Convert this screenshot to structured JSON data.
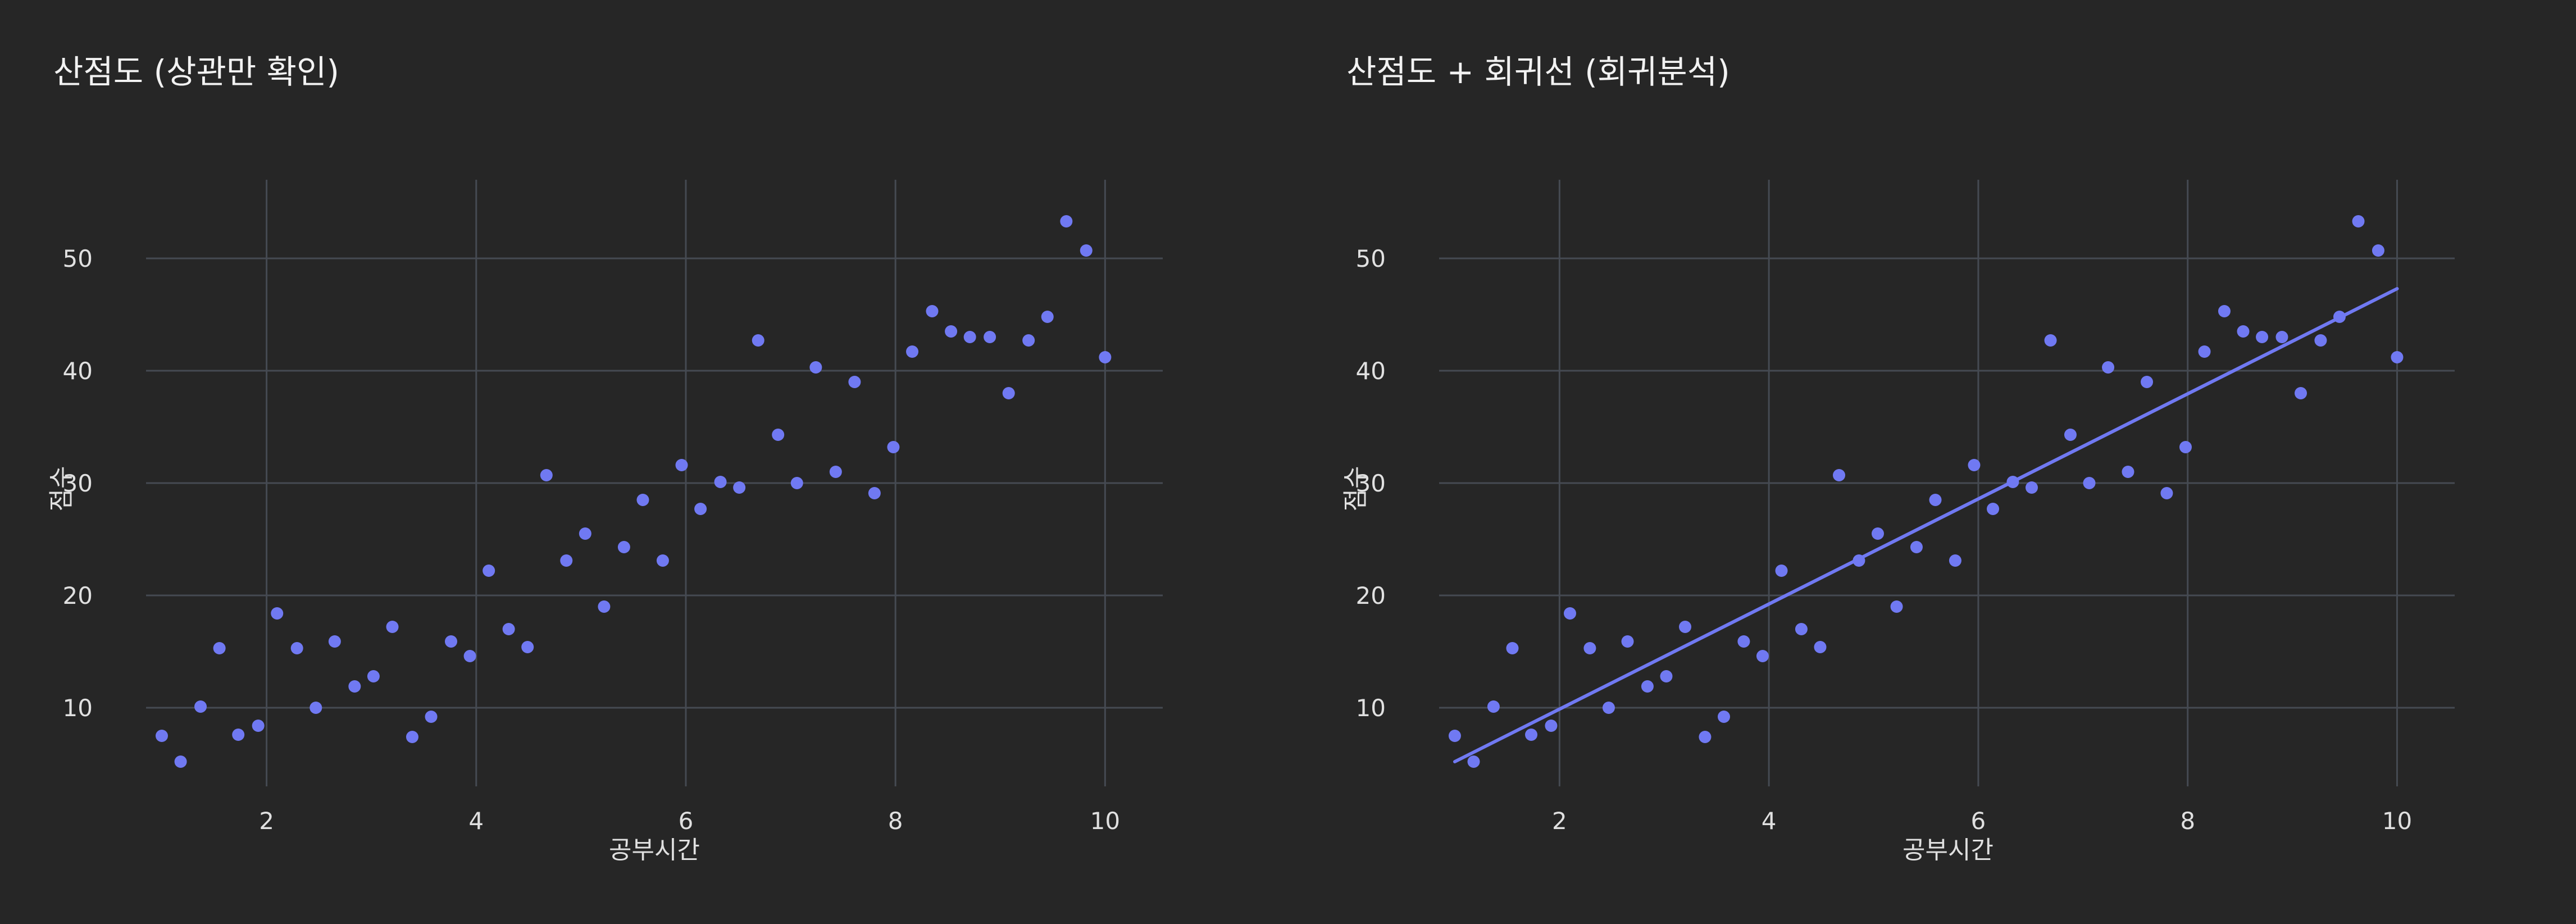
{
  "theme": {
    "background": "#262626",
    "grid": "#454a52",
    "marker": "#7079f2",
    "text": "#e0e0e0"
  },
  "chart_data": [
    {
      "type": "scatter",
      "title": "산점도 (상관만 확인)",
      "xlabel": "공부시간",
      "ylabel": "점수",
      "xlim": [
        0.85,
        10.55
      ],
      "ylim": [
        3.0,
        57.0
      ],
      "xticks": [
        2,
        4,
        6,
        8,
        10
      ],
      "yticks": [
        10,
        20,
        30,
        40,
        50
      ],
      "grid": true,
      "series": [
        {
          "x": [
            1.0,
            1.18,
            1.37,
            1.55,
            1.73,
            1.92,
            2.1,
            2.29,
            2.47,
            2.65,
            2.84,
            3.02,
            3.2,
            3.39,
            3.57,
            3.76,
            3.94,
            4.12,
            4.31,
            4.49,
            4.67,
            4.86,
            5.04,
            5.22,
            5.41,
            5.59,
            5.78,
            5.96,
            6.14,
            6.33,
            6.51,
            6.69,
            6.88,
            7.06,
            7.24,
            7.43,
            7.61,
            7.8,
            7.98,
            8.16,
            8.35,
            8.53,
            8.71,
            8.9,
            9.08,
            9.27,
            9.45,
            9.63,
            9.82,
            10.0
          ],
          "y": [
            7.5,
            5.2,
            10.1,
            15.3,
            7.6,
            8.4,
            18.4,
            15.3,
            10.0,
            15.9,
            11.9,
            12.8,
            17.2,
            7.4,
            9.2,
            15.9,
            14.6,
            22.2,
            17.0,
            15.4,
            30.7,
            23.1,
            25.5,
            19.0,
            24.3,
            28.5,
            23.1,
            31.6,
            27.7,
            30.1,
            29.6,
            42.7,
            34.3,
            30.0,
            40.3,
            31.0,
            39.0,
            29.1,
            33.2,
            41.7,
            45.3,
            43.5,
            43.0,
            43.0,
            38.0,
            42.7,
            44.8,
            53.3,
            50.7,
            41.2
          ]
        }
      ]
    },
    {
      "type": "scatter",
      "title": "산점도 + 회귀선 (회귀분석)",
      "xlabel": "공부시간",
      "ylabel": "점수",
      "xlim": [
        0.85,
        10.55
      ],
      "ylim": [
        3.0,
        57.0
      ],
      "xticks": [
        2,
        4,
        6,
        8,
        10
      ],
      "yticks": [
        10,
        20,
        30,
        40,
        50
      ],
      "grid": true,
      "series": [
        {
          "x": [
            1.0,
            1.18,
            1.37,
            1.55,
            1.73,
            1.92,
            2.1,
            2.29,
            2.47,
            2.65,
            2.84,
            3.02,
            3.2,
            3.39,
            3.57,
            3.76,
            3.94,
            4.12,
            4.31,
            4.49,
            4.67,
            4.86,
            5.04,
            5.22,
            5.41,
            5.59,
            5.78,
            5.96,
            6.14,
            6.33,
            6.51,
            6.69,
            6.88,
            7.06,
            7.24,
            7.43,
            7.61,
            7.8,
            7.98,
            8.16,
            8.35,
            8.53,
            8.71,
            8.9,
            9.08,
            9.27,
            9.45,
            9.63,
            9.82,
            10.0
          ],
          "y": [
            7.5,
            5.2,
            10.1,
            15.3,
            7.6,
            8.4,
            18.4,
            15.3,
            10.0,
            15.9,
            11.9,
            12.8,
            17.2,
            7.4,
            9.2,
            15.9,
            14.6,
            22.2,
            17.0,
            15.4,
            30.7,
            23.1,
            25.5,
            19.0,
            24.3,
            28.5,
            23.1,
            31.6,
            27.7,
            30.1,
            29.6,
            42.7,
            34.3,
            30.0,
            40.3,
            31.0,
            39.0,
            29.1,
            33.2,
            41.7,
            45.3,
            43.5,
            43.0,
            43.0,
            38.0,
            42.7,
            44.8,
            53.3,
            50.7,
            41.2
          ]
        }
      ],
      "regression_line": {
        "x": [
          1.0,
          10.0
        ],
        "y": [
          5.2,
          47.3
        ]
      }
    }
  ]
}
